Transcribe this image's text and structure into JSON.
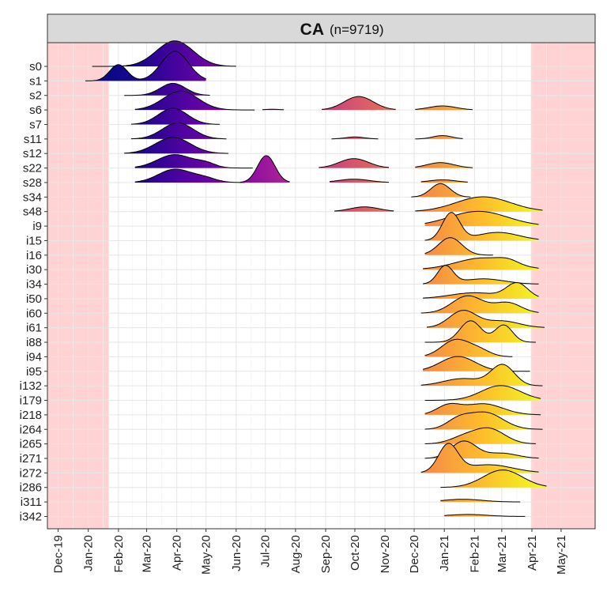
{
  "chart_data": {
    "type": "ridgeline",
    "title": "CA",
    "subtitle": "(n=9719)",
    "xlabel": "",
    "ylabel": "",
    "grid": true,
    "legend": "none",
    "color_scale": "plasma",
    "x_ticks": [
      "Dec-19",
      "Jan-20",
      "Feb-20",
      "Mar-20",
      "Apr-20",
      "May-20",
      "Jun-20",
      "Jul-20",
      "Aug-20",
      "Sep-20",
      "Oct-20",
      "Nov-20",
      "Dec-20",
      "Jan-21",
      "Feb-21",
      "Mar-21",
      "Apr-21",
      "May-21"
    ],
    "x_domain": [
      "2019-11-20",
      "2021-06-05"
    ],
    "shaded_periods": [
      {
        "start": "2019-11-20",
        "end": "2020-01-22"
      },
      {
        "start": "2021-03-31",
        "end": "2021-06-05"
      }
    ],
    "lineages": [
      "s0",
      "s1",
      "s2",
      "s6",
      "s7",
      "s11",
      "s12",
      "s22",
      "s28",
      "s34",
      "s48",
      "i9",
      "i15",
      "i16",
      "i30",
      "i34",
      "i50",
      "i60",
      "i61",
      "i88",
      "i94",
      "i95",
      "i132",
      "i179",
      "i218",
      "i264",
      "i265",
      "i271",
      "i272",
      "i286",
      "i311",
      "i342"
    ],
    "series": [
      {
        "name": "s0",
        "components": [
          {
            "date": "2020-03-30",
            "w": 1.0,
            "sd": 19
          }
        ],
        "range": [
          "2020-01-05",
          "2020-06-01"
        ],
        "peak": 1.9
      },
      {
        "name": "s1",
        "components": [
          {
            "date": "2020-03-30",
            "w": 1.0,
            "sd": 14
          },
          {
            "date": "2020-02-01",
            "w": 0.55,
            "sd": 9
          }
        ],
        "range": [
          "2019-12-29",
          "2020-05-01"
        ],
        "peak": 2.2
      },
      {
        "name": "s2",
        "components": [
          {
            "date": "2020-03-28",
            "w": 1.0,
            "sd": 13
          }
        ],
        "range": [
          "2020-02-07",
          "2020-05-05"
        ],
        "peak": 0.9
      },
      {
        "name": "s6",
        "components": [
          {
            "date": "2020-04-05",
            "w": 1.0,
            "sd": 18
          }
        ],
        "range": [
          "2020-02-18",
          "2020-06-20"
        ],
        "peak": 1.4
      },
      {
        "name": "s6",
        "components": [
          {
            "date": "2020-07-08",
            "w": 1.0,
            "sd": 8
          }
        ],
        "range": [
          "2020-06-28",
          "2020-07-20"
        ],
        "peak": 0.05
      },
      {
        "name": "s6",
        "components": [
          {
            "date": "2020-10-05",
            "w": 1.0,
            "sd": 15
          }
        ],
        "range": [
          "2020-08-28",
          "2020-11-12"
        ],
        "peak": 1.0
      },
      {
        "name": "s6",
        "components": [
          {
            "date": "2020-12-30",
            "w": 1.0,
            "sd": 14
          }
        ],
        "range": [
          "2020-12-02",
          "2021-01-30"
        ],
        "peak": 0.3
      },
      {
        "name": "s7",
        "components": [
          {
            "date": "2020-03-28",
            "w": 1.0,
            "sd": 15
          }
        ],
        "range": [
          "2020-02-14",
          "2020-05-15"
        ],
        "peak": 1.2
      },
      {
        "name": "s11",
        "components": [
          {
            "date": "2020-04-02",
            "w": 1.0,
            "sd": 16
          }
        ],
        "range": [
          "2020-02-14",
          "2020-05-22"
        ],
        "peak": 1.2
      },
      {
        "name": "s11",
        "components": [
          {
            "date": "2020-10-01",
            "w": 1.0,
            "sd": 10
          }
        ],
        "range": [
          "2020-09-07",
          "2020-10-25"
        ],
        "peak": 0.15
      },
      {
        "name": "s11",
        "components": [
          {
            "date": "2020-12-30",
            "w": 1.0,
            "sd": 10
          }
        ],
        "range": [
          "2020-12-02",
          "2021-01-20"
        ],
        "peak": 0.25
      },
      {
        "name": "s12",
        "components": [
          {
            "date": "2020-03-28",
            "w": 1.0,
            "sd": 18
          }
        ],
        "range": [
          "2020-02-07",
          "2020-05-24"
        ],
        "peak": 1.2
      },
      {
        "name": "s22",
        "components": [
          {
            "date": "2020-03-30",
            "w": 1.0,
            "sd": 18
          },
          {
            "date": "2020-05-01",
            "w": 0.3,
            "sd": 10
          }
        ],
        "range": [
          "2020-02-18",
          "2020-06-18"
        ],
        "peak": 1.0
      },
      {
        "name": "s22",
        "components": [
          {
            "date": "2020-09-30",
            "w": 1.0,
            "sd": 15
          }
        ],
        "range": [
          "2020-08-25",
          "2020-11-05"
        ],
        "peak": 0.7
      },
      {
        "name": "s22",
        "components": [
          {
            "date": "2020-12-28",
            "w": 1.0,
            "sd": 14
          }
        ],
        "range": [
          "2020-12-02",
          "2021-01-30"
        ],
        "peak": 0.4
      },
      {
        "name": "s28",
        "components": [
          {
            "date": "2020-03-30",
            "w": 1.0,
            "sd": 17
          },
          {
            "date": "2020-04-30",
            "w": 0.3,
            "sd": 12
          }
        ],
        "range": [
          "2020-02-18",
          "2020-06-10"
        ],
        "peak": 1.0
      },
      {
        "name": "s28",
        "components": [
          {
            "date": "2020-07-02",
            "w": 1.0,
            "sd": 9
          }
        ],
        "range": [
          "2020-06-05",
          "2020-07-26"
        ],
        "peak": 2.0
      },
      {
        "name": "s28",
        "components": [
          {
            "date": "2020-09-30",
            "w": 1.0,
            "sd": 16
          }
        ],
        "range": [
          "2020-09-05",
          "2020-11-05"
        ],
        "peak": 0.25
      },
      {
        "name": "s28",
        "components": [
          {
            "date": "2020-12-30",
            "w": 1.0,
            "sd": 14
          }
        ],
        "range": [
          "2020-12-08",
          "2021-01-25"
        ],
        "peak": 0.2
      },
      {
        "name": "s34",
        "components": [
          {
            "date": "2020-12-28",
            "w": 1.0,
            "sd": 10
          }
        ],
        "range": [
          "2020-11-28",
          "2021-01-28"
        ],
        "peak": 1.0
      },
      {
        "name": "s48",
        "components": [
          {
            "date": "2020-10-11",
            "w": 1.0,
            "sd": 15
          }
        ],
        "range": [
          "2020-09-10",
          "2020-11-10"
        ],
        "peak": 0.35
      },
      {
        "name": "s48",
        "components": [
          {
            "date": "2021-02-10",
            "w": 1.0,
            "sd": 28
          }
        ],
        "range": [
          "2020-12-02",
          "2021-04-12"
        ],
        "peak": 1.1
      },
      {
        "name": "i9",
        "components": [
          {
            "date": "2021-02-05",
            "w": 1.0,
            "sd": 30
          }
        ],
        "range": [
          "2020-12-12",
          "2021-04-08"
        ],
        "peak": 1.1
      },
      {
        "name": "i15",
        "components": [
          {
            "date": "2021-01-08",
            "w": 1.0,
            "sd": 9
          },
          {
            "date": "2021-02-25",
            "w": 0.3,
            "sd": 22
          }
        ],
        "range": [
          "2020-12-12",
          "2021-04-08"
        ],
        "peak": 2.1
      },
      {
        "name": "i16",
        "components": [
          {
            "date": "2021-01-07",
            "w": 1.0,
            "sd": 12
          }
        ],
        "range": [
          "2020-12-12",
          "2021-02-20"
        ],
        "peak": 1.3
      },
      {
        "name": "i30",
        "components": [
          {
            "date": "2021-02-10",
            "w": 1.0,
            "sd": 28
          },
          {
            "date": "2021-03-08",
            "w": 0.3,
            "sd": 10
          }
        ],
        "range": [
          "2020-12-10",
          "2021-04-08"
        ],
        "peak": 0.9
      },
      {
        "name": "i34",
        "components": [
          {
            "date": "2021-01-02",
            "w": 1.0,
            "sd": 8
          },
          {
            "date": "2021-02-10",
            "w": 0.3,
            "sd": 22
          }
        ],
        "range": [
          "2020-12-10",
          "2021-04-08"
        ],
        "peak": 1.4
      },
      {
        "name": "i50",
        "components": [
          {
            "date": "2021-03-17",
            "w": 1.0,
            "sd": 11
          },
          {
            "date": "2021-02-01",
            "w": 0.4,
            "sd": 25
          }
        ],
        "range": [
          "2020-12-10",
          "2021-04-08"
        ],
        "peak": 1.2
      },
      {
        "name": "i60",
        "components": [
          {
            "date": "2021-01-25",
            "w": 1.0,
            "sd": 16
          },
          {
            "date": "2021-03-07",
            "w": 0.6,
            "sd": 14
          }
        ],
        "range": [
          "2020-12-08",
          "2021-04-08"
        ],
        "peak": 1.3
      },
      {
        "name": "i61",
        "components": [
          {
            "date": "2021-01-20",
            "w": 1.0,
            "sd": 14
          },
          {
            "date": "2021-03-01",
            "w": 0.4,
            "sd": 18
          }
        ],
        "range": [
          "2020-12-14",
          "2021-04-14"
        ],
        "peak": 1.3
      },
      {
        "name": "i88",
        "components": [
          {
            "date": "2021-01-28",
            "w": 1.0,
            "sd": 11
          },
          {
            "date": "2021-03-03",
            "w": 0.8,
            "sd": 9
          }
        ],
        "range": [
          "2020-12-12",
          "2021-04-05"
        ],
        "peak": 1.6
      },
      {
        "name": "i94",
        "components": [
          {
            "date": "2021-01-12",
            "w": 1.0,
            "sd": 14
          },
          {
            "date": "2021-02-05",
            "w": 0.4,
            "sd": 12
          }
        ],
        "range": [
          "2020-12-12",
          "2021-03-12"
        ],
        "peak": 1.3
      },
      {
        "name": "i95",
        "components": [
          {
            "date": "2021-01-15",
            "w": 1.0,
            "sd": 18
          }
        ],
        "range": [
          "2020-12-10",
          "2021-03-30"
        ],
        "peak": 1.1
      },
      {
        "name": "i132",
        "components": [
          {
            "date": "2021-03-02",
            "w": 1.0,
            "sd": 12
          },
          {
            "date": "2021-01-20",
            "w": 0.35,
            "sd": 20
          }
        ],
        "range": [
          "2020-12-08",
          "2021-04-12"
        ],
        "peak": 1.6
      },
      {
        "name": "i179",
        "components": [
          {
            "date": "2021-02-28",
            "w": 1.0,
            "sd": 20
          }
        ],
        "range": [
          "2020-12-12",
          "2021-04-10"
        ],
        "peak": 1.1
      },
      {
        "name": "i218",
        "components": [
          {
            "date": "2021-01-05",
            "w": 0.8,
            "sd": 12
          },
          {
            "date": "2021-02-10",
            "w": 1.0,
            "sd": 20
          }
        ],
        "range": [
          "2020-12-12",
          "2021-04-10"
        ],
        "peak": 0.85
      },
      {
        "name": "i264",
        "components": [
          {
            "date": "2021-02-12",
            "w": 1.0,
            "sd": 18
          },
          {
            "date": "2021-01-15",
            "w": 0.5,
            "sd": 12
          }
        ],
        "range": [
          "2020-12-12",
          "2021-04-12"
        ],
        "peak": 1.3
      },
      {
        "name": "i265",
        "components": [
          {
            "date": "2021-02-16",
            "w": 1.0,
            "sd": 16
          },
          {
            "date": "2021-01-20",
            "w": 0.4,
            "sd": 14
          }
        ],
        "range": [
          "2020-12-12",
          "2021-04-05"
        ],
        "peak": 1.2
      },
      {
        "name": "i271",
        "components": [
          {
            "date": "2021-01-21",
            "w": 1.0,
            "sd": 13
          },
          {
            "date": "2021-03-01",
            "w": 0.3,
            "sd": 16
          }
        ],
        "range": [
          "2020-12-12",
          "2021-04-08"
        ],
        "peak": 1.3
      },
      {
        "name": "i272",
        "components": [
          {
            "date": "2021-01-05",
            "w": 1.0,
            "sd": 10
          },
          {
            "date": "2021-02-15",
            "w": 0.3,
            "sd": 25
          }
        ],
        "range": [
          "2020-12-08",
          "2021-04-08"
        ],
        "peak": 2.2
      },
      {
        "name": "i286",
        "components": [
          {
            "date": "2021-03-02",
            "w": 1.0,
            "sd": 20
          }
        ],
        "range": [
          "2020-12-28",
          "2021-04-16"
        ],
        "peak": 1.3
      },
      {
        "name": "i311",
        "components": [
          {
            "date": "2021-01-20",
            "w": 1.0,
            "sd": 20
          }
        ],
        "range": [
          "2020-12-28",
          "2021-03-20"
        ],
        "peak": 0.2
      },
      {
        "name": "i342",
        "components": [
          {
            "date": "2021-01-25",
            "w": 1.0,
            "sd": 20
          }
        ],
        "range": [
          "2021-01-01",
          "2021-03-25"
        ],
        "peak": 0.15
      }
    ]
  }
}
